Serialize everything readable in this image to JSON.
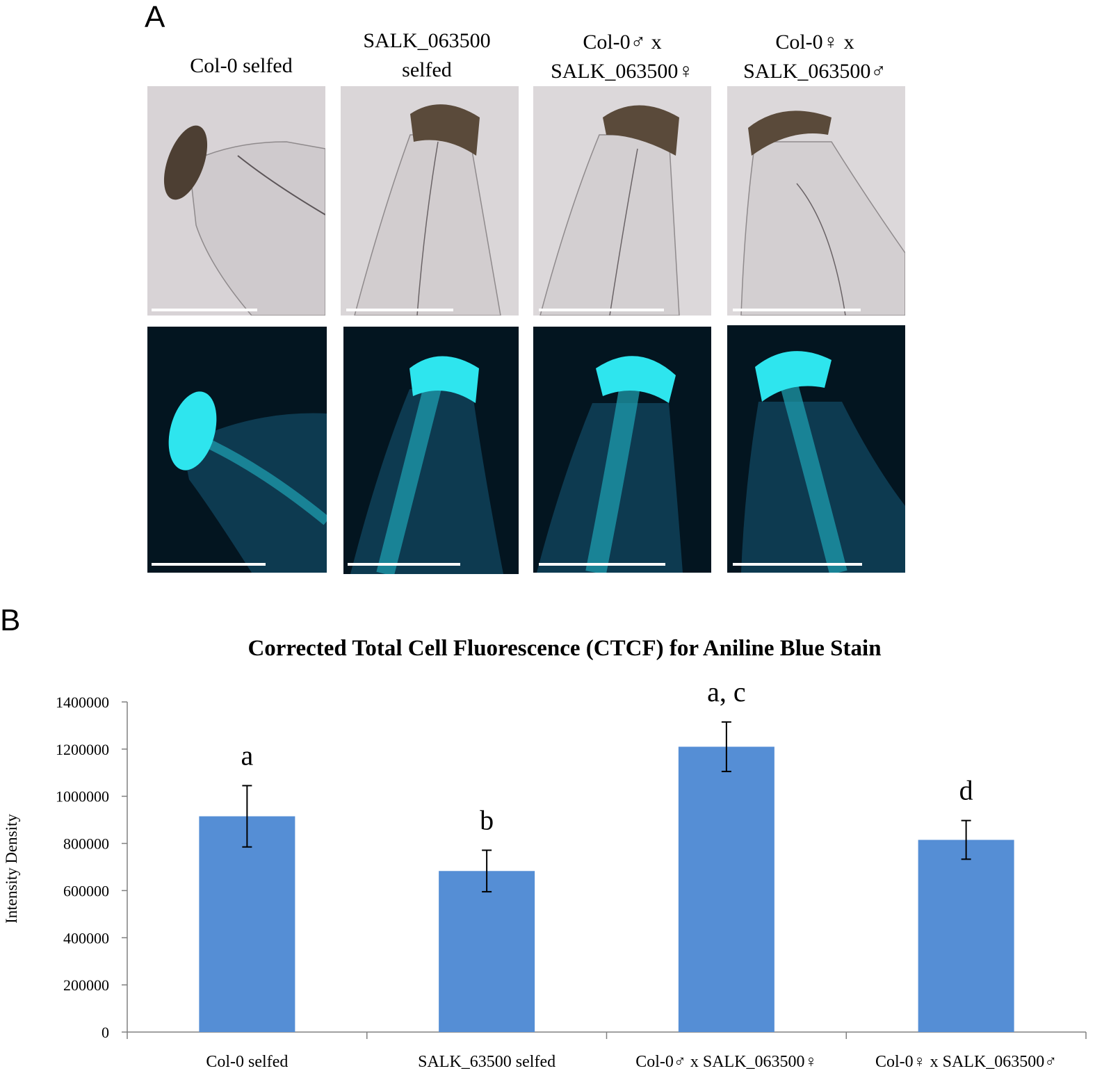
{
  "panel_a": {
    "letter": "A",
    "columns": [
      {
        "label_line1": "Col-0 selfed",
        "label_line2": ""
      },
      {
        "label_line1": "SALK_063500",
        "label_line2": "selfed"
      },
      {
        "label_line1": "Col-0♂ x",
        "label_line2": "SALK_063500♀"
      },
      {
        "label_line1": "Col-0♀ x",
        "label_line2": "SALK_063500♂"
      }
    ]
  },
  "panel_b": {
    "letter": "B"
  },
  "colors": {
    "bar": "#558ed5",
    "brightfield_bg": "#d8d3d6",
    "fluorescence_bg": "#031520",
    "fluorescence_stain": "#2ee5ee"
  },
  "chart_data": {
    "type": "bar",
    "title": "Corrected Total Cell Fluorescence (CTCF) for Aniline Blue Stain",
    "xlabel": "",
    "ylabel": "Intensity Density",
    "categories": [
      "Col-0 selfed",
      "SALK_63500 selfed",
      "Col-0♂ x SALK_063500♀",
      "Col-0♀ x SALK_063500♂"
    ],
    "values": [
      915000,
      683000,
      1210000,
      815000
    ],
    "errors": [
      130000,
      88000,
      105000,
      82000
    ],
    "significance_labels": [
      "a",
      "b",
      "a, c",
      "d"
    ],
    "ylim": [
      0,
      1400000
    ],
    "yticks": [
      0,
      200000,
      400000,
      600000,
      800000,
      1000000,
      1200000,
      1400000
    ],
    "grid": false,
    "legend": "none"
  }
}
